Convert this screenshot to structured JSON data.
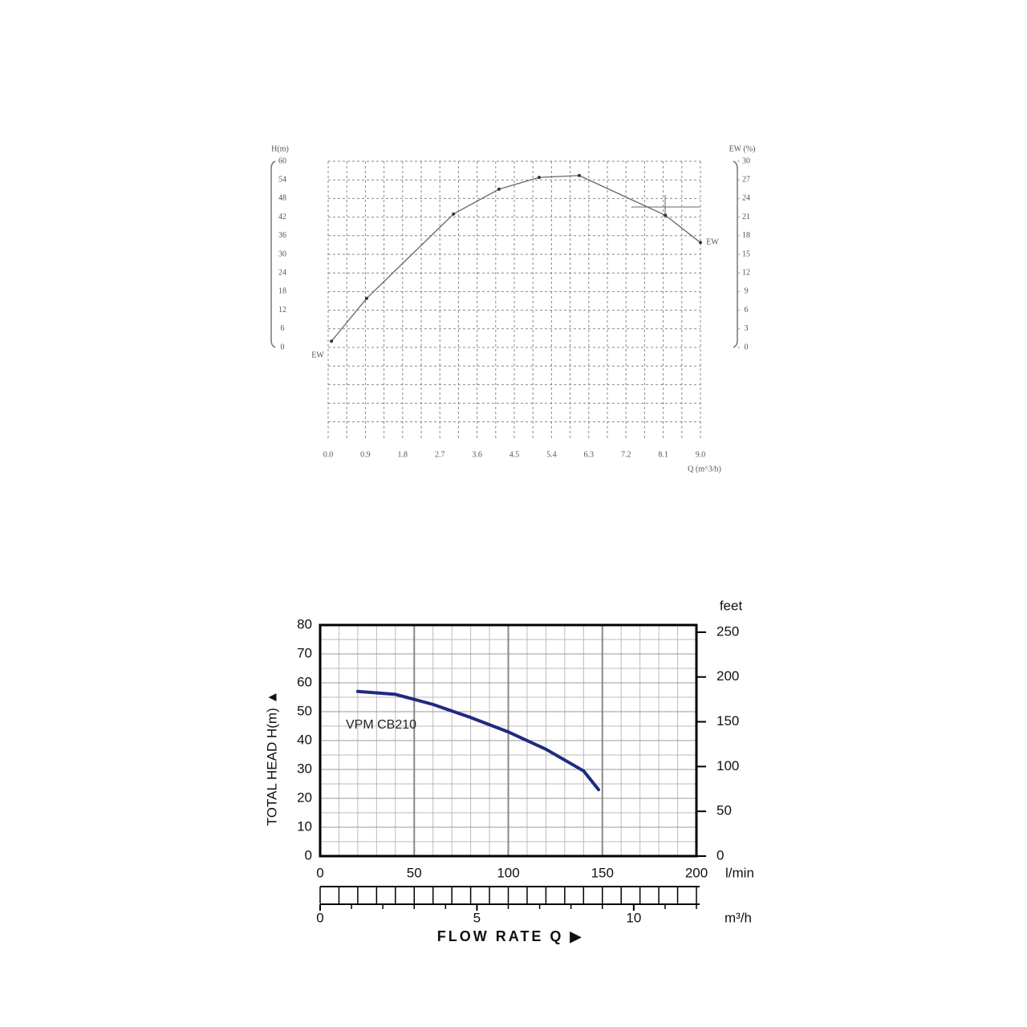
{
  "chart_data": [
    {
      "type": "line",
      "y_label": "H(m)",
      "y2_label": "EW (%)",
      "x_label": "Q (m^3/h)",
      "x": [
        0.08,
        0.93,
        3.03,
        4.13,
        5.1,
        6.07,
        8.15,
        9.0
      ],
      "series": [
        {
          "color": "#666666",
          "axis": "y2",
          "values": [
            1,
            7.9,
            21.5,
            25.5,
            27.4,
            27.7,
            21.3,
            16.9
          ]
        }
      ],
      "annotations": [
        "EW",
        "EW"
      ],
      "xlim": [
        0,
        9
      ],
      "xticks": [
        {
          "value": 0,
          "label": "0.0"
        },
        0.9,
        1.8,
        2.7,
        3.6,
        4.5,
        5.4,
        6.3,
        7.2,
        8.1,
        {
          "value": 9,
          "label": "9.0"
        }
      ],
      "ylim": [
        0,
        60
      ],
      "yticks": [
        0,
        6,
        12,
        18,
        24,
        30,
        36,
        42,
        48,
        54,
        60
      ],
      "y2lim": [
        0,
        30
      ],
      "y2ticks": [
        0,
        3,
        6,
        9,
        12,
        15,
        18,
        21,
        24,
        27,
        30
      ],
      "grid": true
    },
    {
      "type": "line",
      "y_label": "TOTAL HEAD H(m) ▲",
      "y2_label": "feet",
      "x_label": "l/min",
      "x2_label": "m³/h",
      "x_title": "FLOW  RATE Q ▶",
      "x": [
        20,
        40,
        60,
        80,
        100,
        120,
        140,
        148
      ],
      "series": [
        {
          "name": "VPM CB210",
          "color": "#1f2a80",
          "values": [
            57,
            56,
            52.5,
            48,
            43,
            37,
            29.5,
            23
          ]
        }
      ],
      "xlim": [
        0,
        200
      ],
      "xticks": [
        0,
        50,
        100,
        150,
        200
      ],
      "ylim": [
        0,
        80
      ],
      "yticks": [
        0,
        10,
        20,
        30,
        40,
        50,
        60,
        70,
        80
      ],
      "y2lim": [
        0,
        258
      ],
      "y2ticks": [
        0,
        50,
        100,
        150,
        200,
        250
      ],
      "x2lim": [
        0,
        12
      ],
      "x2ticks": [
        0,
        5,
        10
      ],
      "grid": true
    }
  ]
}
